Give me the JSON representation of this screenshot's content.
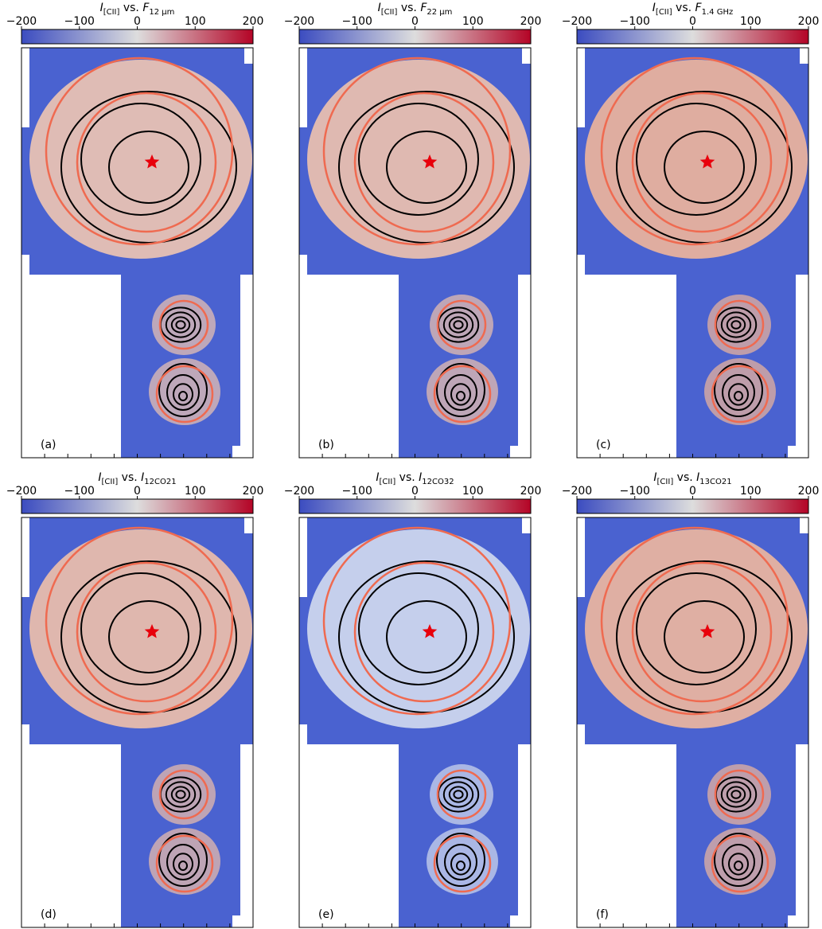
{
  "colorbar": {
    "lim": [
      -200,
      200
    ],
    "ticks": [
      {
        "value": -200,
        "label": "−200"
      },
      {
        "value": -100,
        "label": "−100"
      },
      0,
      100,
      200
    ],
    "colors": [
      "#3b4cc0",
      "#dddddd",
      "#b40426"
    ]
  },
  "panels": [
    {
      "label": "(a)",
      "title": [
        "I",
        "[CII]",
        " vs. ",
        "F",
        "12 µm"
      ],
      "tint": "#efc6b1"
    },
    {
      "label": "(b)",
      "title": [
        "I",
        "[CII]",
        " vs. ",
        "F",
        "22 µm"
      ],
      "tint": "#efc3ad"
    },
    {
      "label": "(c)",
      "title": [
        "I",
        "[CII]",
        " vs. ",
        "F",
        "1.4 GHz"
      ],
      "tint": "#f0b69a"
    },
    {
      "label": "(d)",
      "title": [
        "I",
        "[CII]",
        " vs. ",
        "I",
        "12CO21"
      ],
      "tint": "#efc1aa"
    },
    {
      "label": "(e)",
      "title": [
        "I",
        "[CII]",
        " vs. ",
        "I",
        "12CO32"
      ],
      "tint": "#d3dbee"
    },
    {
      "label": "(f)",
      "title": [
        "I",
        "[CII]",
        " vs. ",
        "I",
        "13CO21"
      ],
      "tint": "#efb89d"
    }
  ]
}
